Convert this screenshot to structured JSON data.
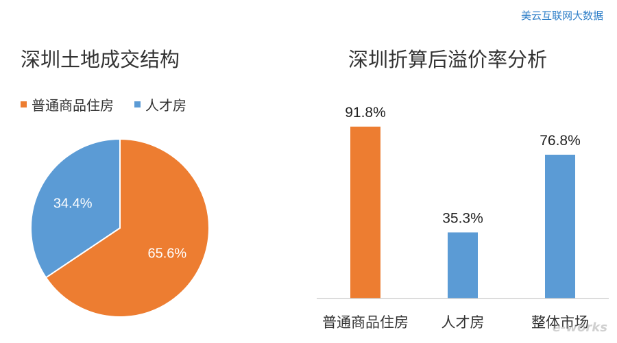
{
  "source_label": "美云互联网大数据",
  "watermark_text": "e-works",
  "colors": {
    "orange": "#ED7D31",
    "blue": "#5B9BD5"
  },
  "chart_data": [
    {
      "type": "pie",
      "title": "深圳土地成交结构",
      "legend_position": "top-left",
      "slices": [
        {
          "label": "普通商品住房",
          "value": 65.6,
          "value_label": "65.6%",
          "color": "#ED7D31"
        },
        {
          "label": "人才房",
          "value": 34.4,
          "value_label": "34.4%",
          "color": "#5B9BD5"
        }
      ]
    },
    {
      "type": "bar",
      "title": "深圳折算后溢价率分析",
      "categories": [
        "普通商品住房",
        "人才房",
        "整体市场"
      ],
      "values": [
        91.8,
        35.3,
        76.8
      ],
      "value_labels": [
        "91.8%",
        "35.3%",
        "76.8%"
      ],
      "colors": [
        "#ED7D31",
        "#5B9BD5",
        "#5B9BD5"
      ],
      "ylim": [
        0,
        100
      ],
      "grid": false
    }
  ]
}
